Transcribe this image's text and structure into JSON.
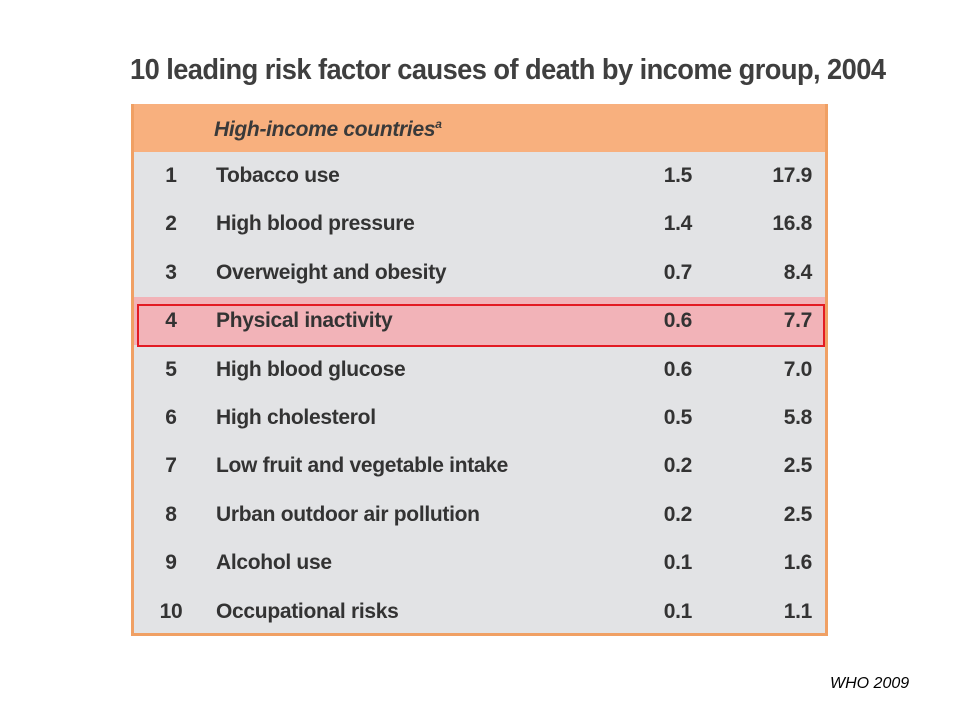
{
  "title": "10 leading risk factor causes of death by income group, 2004",
  "table": {
    "group_label": "High-income countries",
    "group_footnote": "a",
    "highlight_row_rank": "4",
    "rows": [
      {
        "rank": "1",
        "name": "Tobacco use",
        "pct": "1.5",
        "value": "17.9"
      },
      {
        "rank": "2",
        "name": "High blood pressure",
        "pct": "1.4",
        "value": "16.8"
      },
      {
        "rank": "3",
        "name": "Overweight and obesity",
        "pct": "0.7",
        "value": "8.4"
      },
      {
        "rank": "4",
        "name": "Physical inactivity",
        "pct": "0.6",
        "value": "7.7"
      },
      {
        "rank": "5",
        "name": "High blood glucose",
        "pct": "0.6",
        "value": "7.0"
      },
      {
        "rank": "6",
        "name": "High cholesterol",
        "pct": "0.5",
        "value": "5.8"
      },
      {
        "rank": "7",
        "name": "Low fruit and vegetable intake",
        "pct": "0.2",
        "value": "2.5"
      },
      {
        "rank": "8",
        "name": "Urban outdoor air pollution",
        "pct": "0.2",
        "value": "2.5"
      },
      {
        "rank": "9",
        "name": "Alcohol use",
        "pct": "0.1",
        "value": "1.6"
      },
      {
        "rank": "10",
        "name": "Occupational risks",
        "pct": "0.1",
        "value": "1.1"
      }
    ]
  },
  "source": "WHO 2009",
  "colors": {
    "header_band": "#f8b07e",
    "table_border": "#f0a064",
    "table_body": "#e2e3e5",
    "highlight_fill": "#f2b3b8",
    "highlight_outline": "#e31b23"
  }
}
